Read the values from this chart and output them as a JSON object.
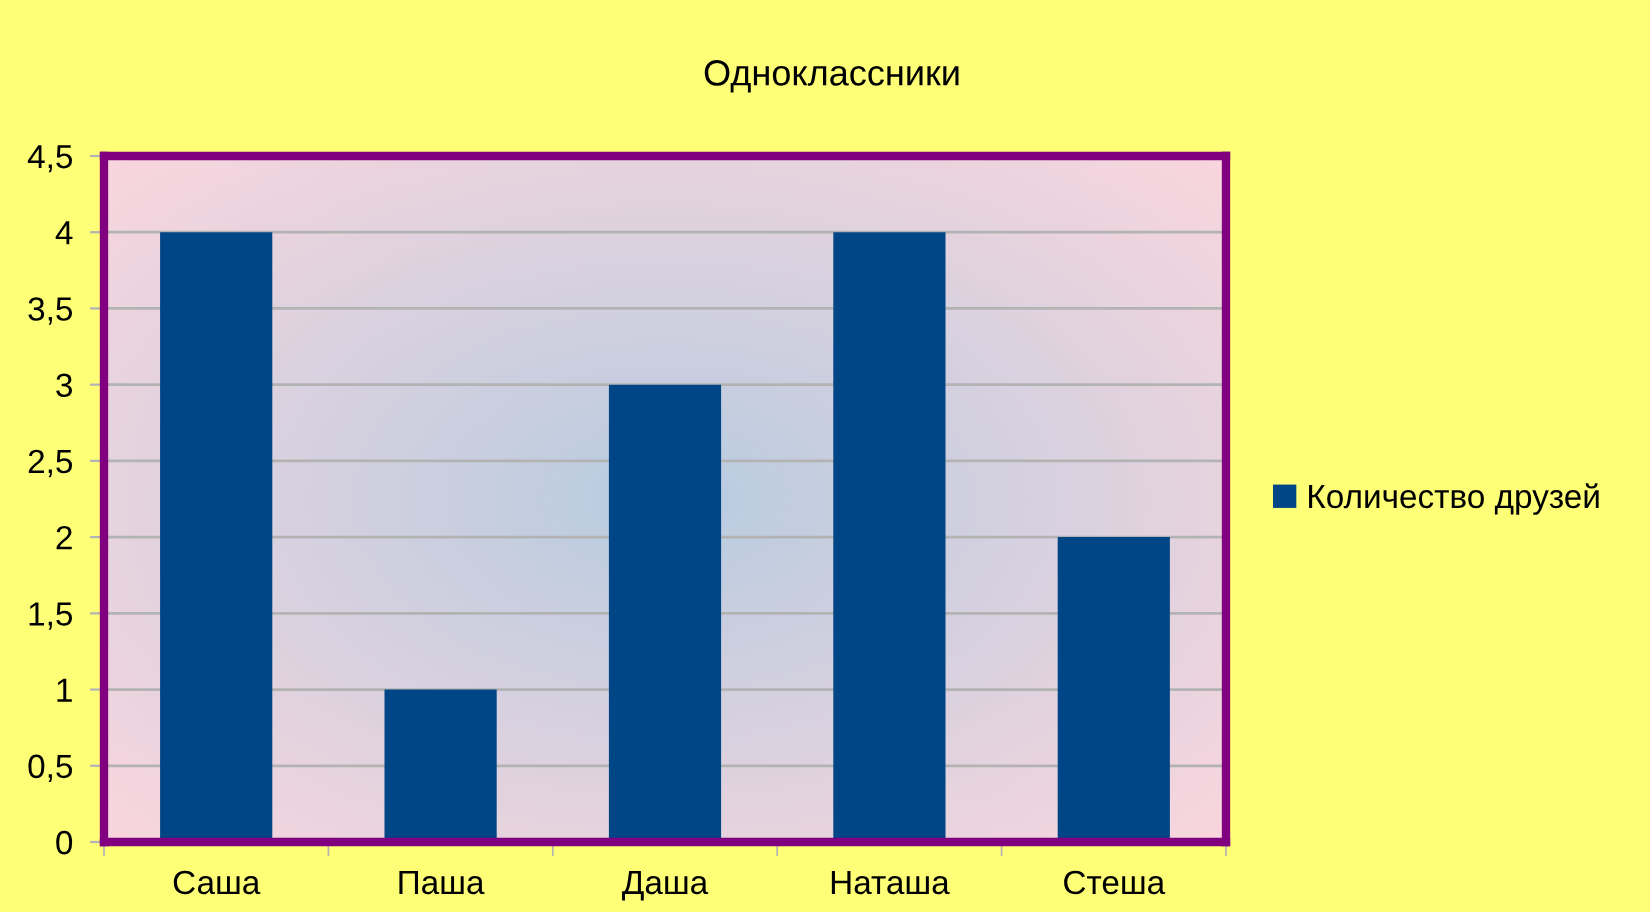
{
  "chart_data": {
    "type": "bar",
    "title": "Одноклассники",
    "categories": [
      "Саша",
      "Паша",
      "Даша",
      "Наташа",
      "Стеша"
    ],
    "series": [
      {
        "name": "Количество друзей",
        "color": "#004586",
        "values": [
          4,
          1,
          3,
          4,
          2
        ]
      }
    ],
    "ylim": [
      0,
      4.5
    ],
    "yticks": [
      0,
      {
        "value": 0.5,
        "label": "0,5"
      },
      1,
      {
        "value": 1.5,
        "label": "1,5"
      },
      2,
      {
        "value": 2.5,
        "label": "2,5"
      },
      3,
      {
        "value": 3.5,
        "label": "3,5"
      },
      4,
      {
        "value": 4.5,
        "label": "4,5"
      }
    ],
    "grid": "y",
    "legend": "right"
  }
}
